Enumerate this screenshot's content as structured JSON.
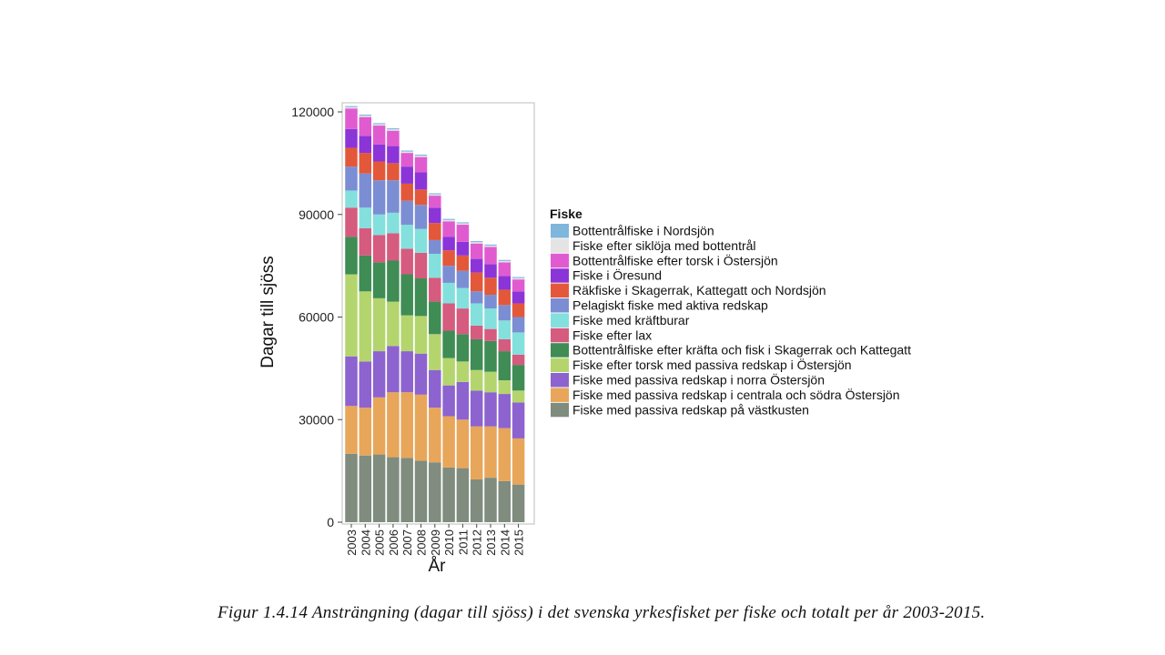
{
  "chart_data": {
    "type": "bar",
    "stacked": true,
    "xlabel": "År",
    "ylabel": "Dagar till sjöss",
    "ylim": [
      0,
      120000
    ],
    "yticks": [
      0,
      30000,
      60000,
      90000,
      120000
    ],
    "ytick_labels": [
      "0",
      "30000",
      "60000",
      "90000",
      "120000"
    ],
    "grid": false,
    "legend_title": "Fiske",
    "legend_position": "right",
    "categories": [
      "2003",
      "2004",
      "2005",
      "2006",
      "2007",
      "2008",
      "2009",
      "2010",
      "2011",
      "2012",
      "2013",
      "2014",
      "2015"
    ],
    "series": [
      {
        "name": "Fiske med passiva redskap på västkusten",
        "color": "#7f8c7e",
        "values": [
          20000,
          19500,
          19800,
          19000,
          18800,
          18000,
          17500,
          16000,
          15800,
          12500,
          13000,
          12000,
          11000
        ]
      },
      {
        "name": "Fiske med passiva redskap i centrala och södra Östersjön",
        "color": "#e7a65a",
        "values": [
          14000,
          14000,
          16700,
          19000,
          19200,
          19300,
          16000,
          15000,
          14200,
          15500,
          15000,
          15500,
          13500
        ]
      },
      {
        "name": "Fiske med passiva redskap i norra Östersjön",
        "color": "#8d63cf",
        "values": [
          14500,
          13500,
          13500,
          13500,
          12000,
          12000,
          11000,
          9000,
          11000,
          10500,
          10000,
          10000,
          10500
        ]
      },
      {
        "name": "Fiske efter torsk med passiva redskap i Östersjön",
        "color": "#b4d56e",
        "values": [
          24000,
          20500,
          15500,
          13000,
          10500,
          11000,
          10500,
          8000,
          6000,
          6000,
          6000,
          4000,
          3500
        ]
      },
      {
        "name": "Bottentrålfiske efter kräfta och fisk i Skagerrak och Kattegatt",
        "color": "#3f8c55",
        "values": [
          11000,
          10500,
          10500,
          12000,
          12000,
          11000,
          9500,
          8000,
          8000,
          9000,
          9000,
          8500,
          7500
        ]
      },
      {
        "name": "Fiske efter lax",
        "color": "#d55b7f",
        "values": [
          8500,
          8000,
          8000,
          8000,
          7500,
          7500,
          7000,
          8000,
          7500,
          4000,
          3500,
          3500,
          3000
        ]
      },
      {
        "name": "Fiske med kräftburar",
        "color": "#83e0dd",
        "values": [
          5000,
          6000,
          6000,
          6000,
          7000,
          7000,
          7000,
          6000,
          6000,
          6500,
          6000,
          5500,
          6500
        ]
      },
      {
        "name": "Pelagiskt fiske med aktiva redskap",
        "color": "#7b8ed4",
        "values": [
          7000,
          10000,
          10000,
          9500,
          7000,
          7000,
          4000,
          5000,
          5000,
          3500,
          4000,
          4500,
          4500
        ]
      },
      {
        "name": "Räkfiske i Skagerrak, Kattegatt och Nordsjön",
        "color": "#e3583a",
        "values": [
          5500,
          6000,
          5500,
          5000,
          5000,
          4500,
          5000,
          4500,
          4500,
          5500,
          5000,
          4500,
          4000
        ]
      },
      {
        "name": "Fiske i Öresund",
        "color": "#8b35d8",
        "values": [
          5500,
          5000,
          5000,
          5000,
          5000,
          5000,
          4500,
          4000,
          4000,
          4000,
          4000,
          4000,
          3500
        ]
      },
      {
        "name": "Bottentrålfiske efter torsk i Östersjön",
        "color": "#e05bd0",
        "values": [
          6000,
          5500,
          5500,
          4500,
          4000,
          4500,
          3500,
          4500,
          5000,
          4500,
          5000,
          4000,
          3500
        ]
      },
      {
        "name": "Fiske efter siklöja med bottentrål",
        "color": "#e4e4e4",
        "values": [
          400,
          400,
          400,
          400,
          400,
          400,
          400,
          400,
          400,
          400,
          400,
          400,
          400
        ]
      },
      {
        "name": "Bottentrålfiske  i Nordsjön",
        "color": "#7fb6db",
        "values": [
          300,
          300,
          300,
          300,
          300,
          300,
          300,
          300,
          300,
          300,
          300,
          300,
          300
        ]
      }
    ]
  },
  "caption": "Figur 1.4.14 Ansträngning (dagar till sjöss) i det svenska yrkesfisket per fiske och totalt per år 2003-2015."
}
